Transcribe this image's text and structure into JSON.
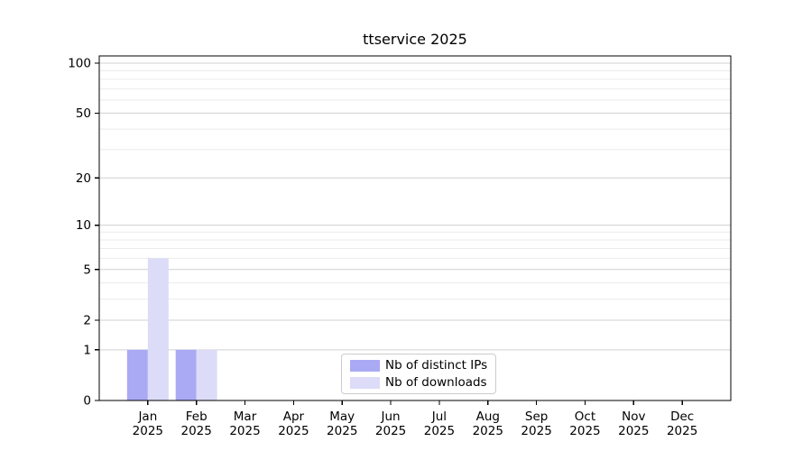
{
  "chart_data": {
    "type": "bar",
    "title": "ttservice 2025",
    "categories": [
      "Jan",
      "Feb",
      "Mar",
      "Apr",
      "May",
      "Jun",
      "Jul",
      "Aug",
      "Sep",
      "Oct",
      "Nov",
      "Dec"
    ],
    "category_year": "2025",
    "series": [
      {
        "name": "Nb of distinct IPs",
        "color": "#a9a9f4",
        "values": [
          1,
          1,
          0,
          0,
          0,
          0,
          0,
          0,
          0,
          0,
          0,
          0
        ]
      },
      {
        "name": "Nb of downloads",
        "color": "#dcdcf8",
        "values": [
          6,
          1,
          0,
          0,
          0,
          0,
          0,
          0,
          0,
          0,
          0,
          0
        ]
      }
    ],
    "xlabel": "",
    "ylabel": "",
    "yscale": "log1p",
    "ylim": [
      0,
      110.5
    ],
    "ytick_values": [
      0,
      1,
      2,
      5,
      10,
      20,
      50,
      100
    ],
    "ytick_labels": [
      "0",
      "1",
      "2",
      "5",
      "10",
      "20",
      "50",
      "100"
    ],
    "major_gridline_values": [
      1,
      2,
      5,
      10,
      20,
      50,
      100
    ],
    "minor_gridline_values": [
      3,
      4,
      6,
      7,
      8,
      9,
      30,
      40,
      60,
      70,
      80,
      90
    ],
    "grid": true,
    "legend_position": "lower center",
    "colors": {
      "axis": "#000000",
      "major_grid": "#d0d0d0",
      "minor_grid": "#ebebeb",
      "background": "#ffffff"
    }
  }
}
